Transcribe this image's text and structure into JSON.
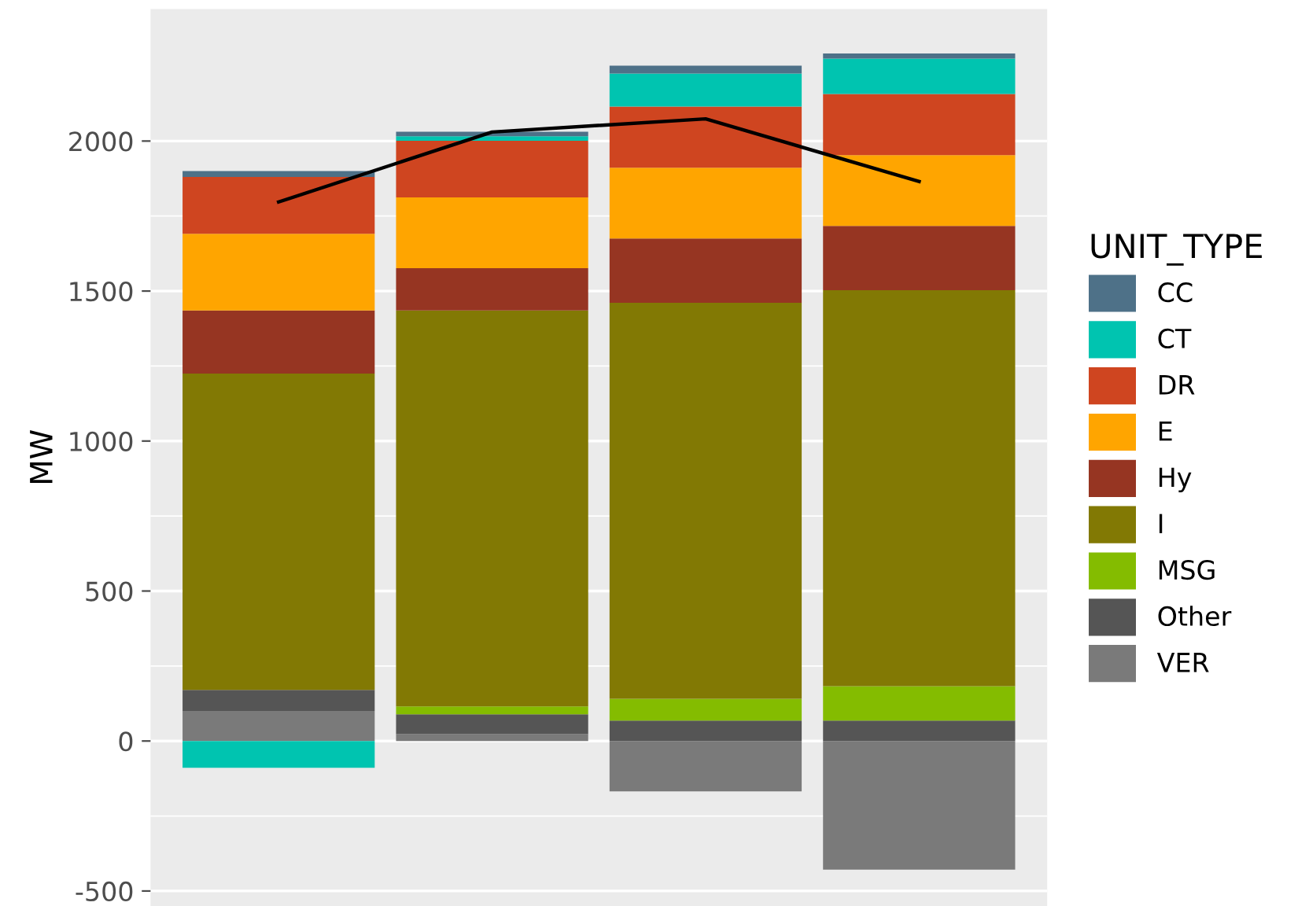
{
  "chart_data": {
    "type": "bar",
    "stacked": true,
    "ylabel": "MW",
    "legend_title": "UNIT_TYPE",
    "legend": "right",
    "grid": "y",
    "categories": [
      null,
      null,
      null,
      null
    ],
    "ylim": [
      -550,
      2440
    ],
    "yticks": [
      -500,
      0,
      500,
      1000,
      1500,
      2000
    ],
    "tick_labels": "y",
    "series": [
      {
        "name": "VER",
        "color": "#7a7a7a",
        "values": [
          100,
          23,
          -168,
          -429
        ]
      },
      {
        "name": "Other",
        "color": "#555555",
        "values": [
          70,
          66,
          68,
          68
        ]
      },
      {
        "name": "MSG",
        "color": "#84bc00",
        "values": [
          null,
          26,
          73,
          115
        ]
      },
      {
        "name": "I",
        "color": "#827904",
        "values": [
          1055,
          1320,
          1320,
          1320
        ]
      },
      {
        "name": "Hy",
        "color": "#963522",
        "values": [
          210,
          141,
          214,
          214
        ]
      },
      {
        "name": "E",
        "color": "#ffa500",
        "values": [
          256,
          236,
          236,
          236
        ]
      },
      {
        "name": "DR",
        "color": "#cf4520",
        "values": [
          189,
          189,
          204,
          204
        ]
      },
      {
        "name": "CT",
        "color": "#00c4b0",
        "values": [
          -89,
          15,
          110,
          118
        ]
      },
      {
        "name": "CC",
        "color": "#4e7188",
        "values": [
          20,
          15,
          26,
          17
        ]
      },
      {
        "type": "line",
        "color": "#000000",
        "values": [
          1797,
          2030,
          2074,
          1865
        ]
      }
    ]
  }
}
